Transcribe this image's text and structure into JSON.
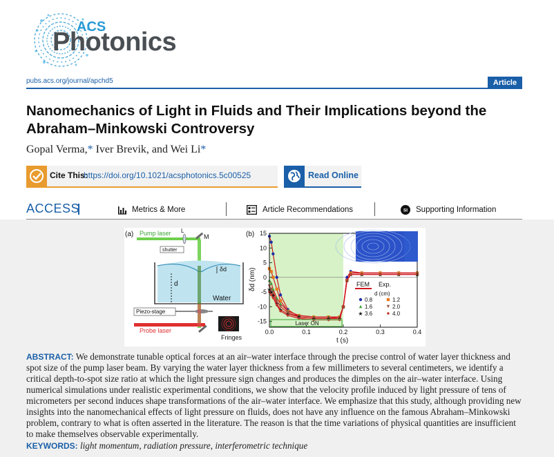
{
  "header": {
    "logo": {
      "acs": "ACS",
      "name": "Photonics"
    },
    "journal_url": "pubs.acs.org/journal/apchd5",
    "article_type": "Article"
  },
  "paper": {
    "title": "Nanomechanics of Light in Fluids and Their Implications beyond the Abraham–Minkowski Controversy",
    "authors": [
      {
        "name": "Gopal Verma,",
        "star": "*"
      },
      {
        "name": " Iver Brevik, and Wei Li",
        "star": "*"
      }
    ]
  },
  "cite": {
    "label": "Cite This:",
    "doi": "https://doi.org/10.1021/acsphotonics.5c00525"
  },
  "read_online": {
    "label": "Read Online"
  },
  "access": {
    "label": "ACCESS",
    "items": [
      {
        "label": "Metrics & More",
        "icon": "bar-chart-icon"
      },
      {
        "label": "Article Recommendations",
        "icon": "article-list-icon"
      },
      {
        "label": "Supporting Information",
        "icon": "si-icon"
      }
    ]
  },
  "figure": {
    "panel_a": {
      "tag": "(a)",
      "labels": {
        "pump_laser": "Pump laser",
        "L": "L",
        "M": "M",
        "shutter": "shutter",
        "delta_d": "δd",
        "d": "d",
        "water": "Water",
        "piezo_stage": "Piezo-stage",
        "probe_laser": "Probe laser",
        "fringes": "Fringes"
      }
    },
    "panel_b": {
      "tag": "(b)",
      "laser_on": "Laser ON",
      "fem": "FEM",
      "exp": "Exp.",
      "legend_title": "d (cm)",
      "colors": {
        "laser_on_region": "#d6f2c6",
        "fem": "#d0161e"
      }
    }
  },
  "chart_data": {
    "type": "scatter",
    "xlabel": "t (s)",
    "ylabel": "δd (nm)",
    "xlim": [
      0.0,
      0.4
    ],
    "ylim": [
      -17,
      15
    ],
    "xticks": [
      "0.0",
      "0.1",
      "0.2",
      "0.3",
      "0.4"
    ],
    "yticks": [
      "15",
      "10",
      "5",
      "0",
      "-5",
      "-10",
      "-15"
    ],
    "laser_on_interval": [
      0.0,
      0.2
    ],
    "series": [
      {
        "name": "0.8",
        "color": "#1f2ea8",
        "marker": "circle",
        "x": [
          0.0,
          0.005,
          0.01,
          0.02,
          0.03,
          0.05,
          0.08,
          0.12,
          0.16,
          0.19,
          0.2,
          0.21,
          0.22,
          0.25,
          0.3,
          0.35,
          0.4
        ],
        "y": [
          14,
          12,
          8,
          0,
          -6,
          -11,
          -13.5,
          -14,
          -14,
          -13.5,
          -10,
          0,
          2,
          1.5,
          1.5,
          1.5,
          1.5
        ]
      },
      {
        "name": "1.2",
        "color": "#e87a20",
        "marker": "square",
        "x": [
          0.0,
          0.005,
          0.01,
          0.02,
          0.03,
          0.05,
          0.08,
          0.12,
          0.16,
          0.19,
          0.2,
          0.21,
          0.22,
          0.25,
          0.3,
          0.35,
          0.4
        ],
        "y": [
          3,
          2,
          0,
          -4,
          -8,
          -11.5,
          -13,
          -13.5,
          -13.5,
          -13.5,
          -10,
          -1,
          1.5,
          1.5,
          1.5,
          1.5,
          1.5
        ]
      },
      {
        "name": "1.6",
        "color": "#3aa335",
        "marker": "triangle",
        "x": [
          0.0,
          0.005,
          0.01,
          0.02,
          0.03,
          0.05,
          0.08,
          0.12,
          0.16,
          0.19,
          0.2,
          0.21,
          0.22,
          0.25,
          0.3,
          0.35,
          0.4
        ],
        "y": [
          -1,
          -2,
          -4,
          -7,
          -9,
          -11.5,
          -13,
          -13.5,
          -13.5,
          -13.5,
          -10,
          -1,
          1,
          1,
          1,
          1,
          1
        ]
      },
      {
        "name": "2.0",
        "color": "#9a5a45",
        "marker": "triangle-down",
        "x": [
          0.0,
          0.005,
          0.01,
          0.02,
          0.03,
          0.05,
          0.08,
          0.12,
          0.16,
          0.19,
          0.2,
          0.21,
          0.22,
          0.25,
          0.3,
          0.35,
          0.4
        ],
        "y": [
          -3,
          -4,
          -5,
          -8,
          -10,
          -12,
          -13.5,
          -14,
          -14,
          -14,
          -10,
          -1,
          1,
          1,
          1,
          1,
          1
        ]
      },
      {
        "name": "3.6",
        "color": "#111111",
        "marker": "star",
        "x": [
          0.0,
          0.005,
          0.01,
          0.02,
          0.03,
          0.05,
          0.08,
          0.12,
          0.16,
          0.19,
          0.2,
          0.21,
          0.22,
          0.25,
          0.3,
          0.35,
          0.4
        ],
        "y": [
          -4,
          -5,
          -6,
          -9,
          -11,
          -12.5,
          -13.5,
          -14,
          -14,
          -14,
          -10,
          -1,
          1,
          1,
          1,
          1,
          1
        ]
      },
      {
        "name": "4.0",
        "color": "#c0392b",
        "marker": "diamond",
        "x": [
          0.0,
          0.005,
          0.01,
          0.02,
          0.03,
          0.05,
          0.08,
          0.12,
          0.16,
          0.19,
          0.2,
          0.21,
          0.22,
          0.25,
          0.3,
          0.35,
          0.4
        ],
        "y": [
          -5,
          -6,
          -7,
          -9.5,
          -11.5,
          -13,
          -14,
          -14.5,
          -14.5,
          -14.5,
          -10,
          -1,
          1,
          1,
          1,
          1,
          1
        ]
      }
    ]
  },
  "abstract": {
    "label": "ABSTRACT:",
    "text": "We demonstrate tunable optical forces at an air–water interface through the precise control of water layer thickness and spot size of the pump laser beam. By varying the water layer thickness from a few millimeters to several centimeters, we identify a critical depth-to-spot size ratio at which the light pressure sign changes and produces the dimples on the air–water interface. Using numerical simulations under realistic experimental conditions, we show that the velocity profile induced by light pressure of tens of micrometers per second induces shape transformations of the air–water interface. We emphasize that this study, although providing new insights into the nanomechanical effects of light pressure on fluids, does not have any influence on the famous Abraham–Minkowski problem, contrary to what is often asserted in the literature. The reason is that the time variations of physical quantities are insufficient to make themselves observable experimentally."
  },
  "keywords": {
    "label": "KEYWORDS:",
    "text": "light momentum, radiation pressure, interferometric technique"
  }
}
